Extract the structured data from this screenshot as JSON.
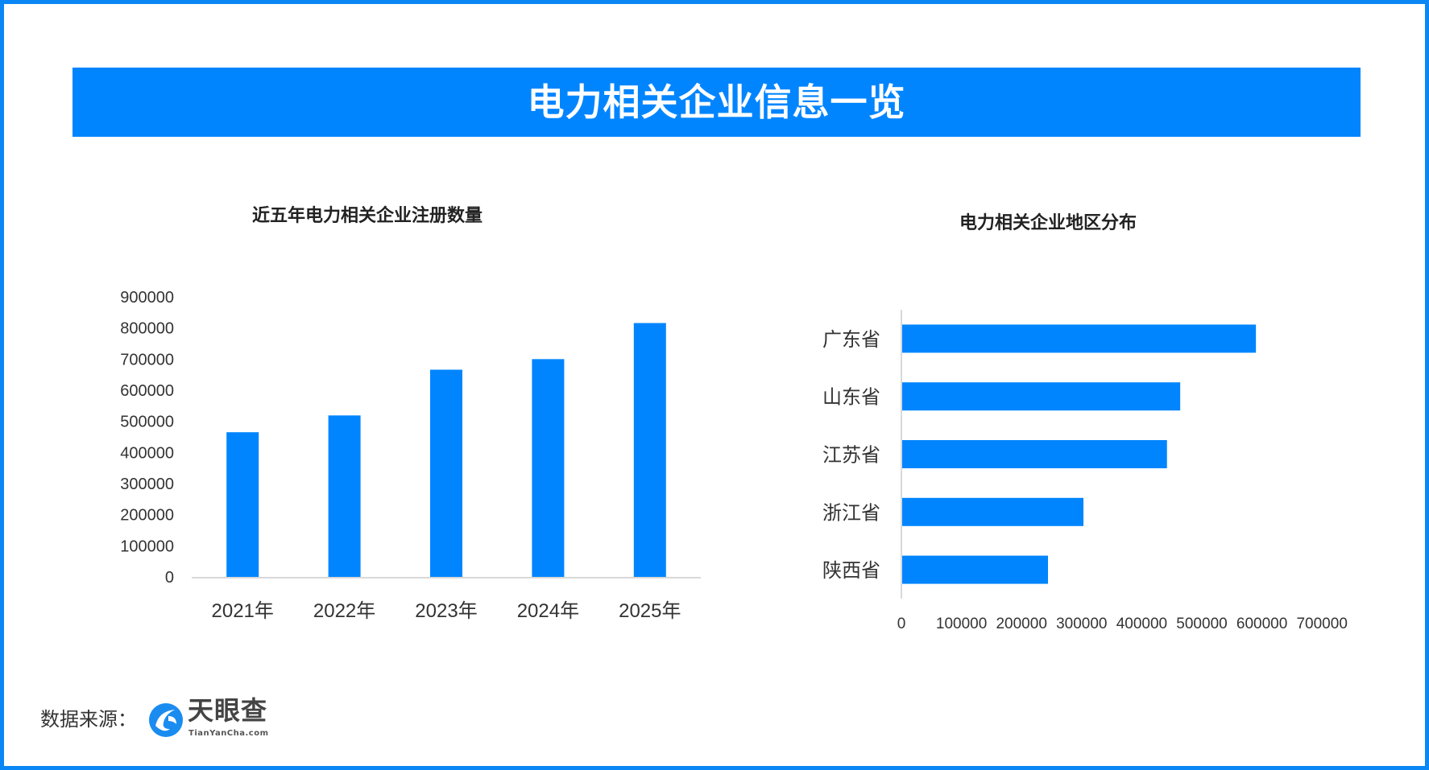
{
  "header": {
    "title": "电力相关企业信息一览"
  },
  "colors": {
    "accent": "#0085ff",
    "bar": "#0085ff",
    "axis": "#d9d9d9",
    "text": "#333333"
  },
  "chart_data": [
    {
      "type": "bar",
      "title": "近五年电力相关企业注册数量",
      "categories": [
        "2021年",
        "2022年",
        "2023年",
        "2024年",
        "2025年"
      ],
      "values": [
        465000,
        519000,
        666000,
        700000,
        816000
      ],
      "ylim": [
        0,
        900000
      ],
      "yticks": [
        "0",
        "100000",
        "200000",
        "300000",
        "400000",
        "500000",
        "600000",
        "700000",
        "800000",
        "900000"
      ],
      "grid": false,
      "xlabel": "",
      "ylabel": ""
    },
    {
      "type": "bar",
      "orientation": "horizontal",
      "title": "电力相关企业地区分布",
      "categories": [
        "广东省",
        "山东省",
        "江苏省",
        "浙江省",
        "陕西省"
      ],
      "values": [
        590000,
        464000,
        442000,
        303000,
        244000
      ],
      "xlim": [
        0,
        700000
      ],
      "xticks": [
        "0",
        "100000",
        "200000",
        "300000",
        "400000",
        "500000",
        "600000",
        "700000"
      ],
      "grid": false,
      "xlabel": "",
      "ylabel": ""
    }
  ],
  "footer": {
    "source_label": "数据来源：",
    "logo_cn": "天眼查",
    "logo_en": "TianYanCha.com"
  }
}
